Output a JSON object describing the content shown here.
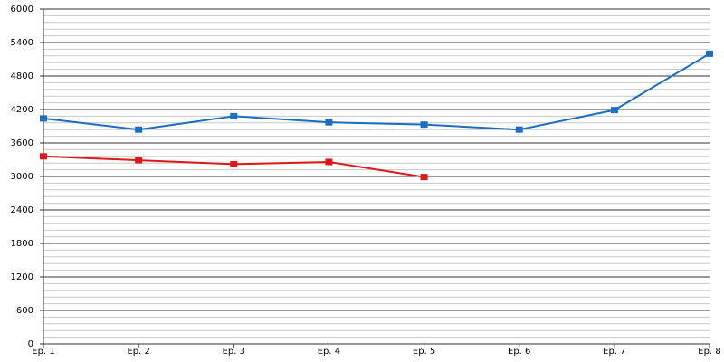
{
  "chart_data": {
    "type": "line",
    "categories": [
      "Ep. 1",
      "Ep. 2",
      "Ep. 3",
      "Ep. 4",
      "Ep. 5",
      "Ep. 6",
      "Ep. 7",
      "Ep. 8"
    ],
    "series": [
      {
        "color": "#1a6fc4",
        "values": [
          4040,
          3840,
          4080,
          3970,
          3930,
          3840,
          4190,
          5200
        ]
      },
      {
        "color": "#e01818",
        "values": [
          3360,
          3290,
          3220,
          3260,
          2990,
          null,
          null,
          null
        ]
      }
    ],
    "ylim": [
      0,
      6000
    ],
    "yticks": [
      0,
      600,
      1200,
      1800,
      2400,
      3000,
      3600,
      4200,
      4800,
      5400,
      6000
    ],
    "yminorticks": [
      120,
      240,
      360,
      480,
      720,
      840,
      960,
      1080,
      1320,
      1440,
      1560,
      1680,
      1920,
      2040,
      2160,
      2280,
      2520,
      2640,
      2760,
      2880,
      3120,
      3240,
      3360,
      3480,
      3720,
      3840,
      3960,
      4080,
      4320,
      4440,
      4560,
      4680,
      4920,
      5040,
      5160,
      5280,
      5520,
      5640,
      5760,
      5880
    ],
    "grid": true
  }
}
